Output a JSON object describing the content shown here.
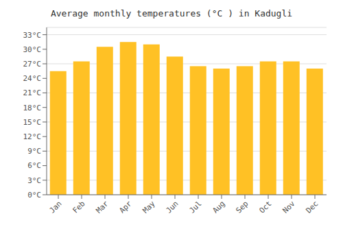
{
  "chart_data": {
    "type": "bar",
    "title": "Average monthly temperatures (°C ) in Kadugli",
    "categories": [
      "Jan",
      "Feb",
      "Mar",
      "Apr",
      "May",
      "Jun",
      "Jul",
      "Aug",
      "Sep",
      "Oct",
      "Nov",
      "Dec"
    ],
    "values": [
      25.5,
      27.5,
      30.5,
      31.5,
      31.0,
      28.5,
      26.5,
      26.0,
      26.5,
      27.5,
      27.5,
      26.0
    ],
    "color": "#FFC125",
    "ylim": [
      0,
      34.5
    ],
    "yticks": [
      {
        "value": 0,
        "label": "0°C"
      },
      {
        "value": 3,
        "label": "3°C"
      },
      {
        "value": 6,
        "label": "6°C"
      },
      {
        "value": 9,
        "label": "9°C"
      },
      {
        "value": 12,
        "label": "12°C"
      },
      {
        "value": 15,
        "label": "15°C"
      },
      {
        "value": 18,
        "label": "18°C"
      },
      {
        "value": 21,
        "label": "21°C"
      },
      {
        "value": 24,
        "label": "24°C"
      },
      {
        "value": 27,
        "label": "27°C"
      },
      {
        "value": 30,
        "label": "30°C"
      },
      {
        "value": 33,
        "label": "33°C"
      }
    ],
    "grid": true
  }
}
